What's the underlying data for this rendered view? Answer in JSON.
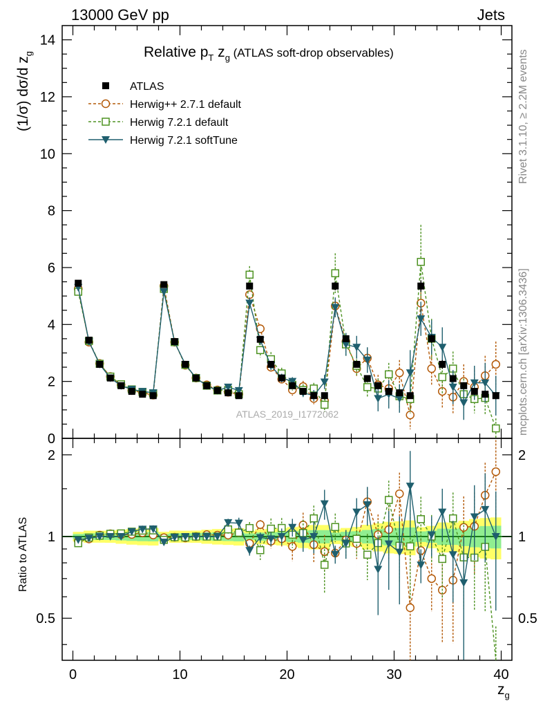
{
  "header": {
    "left": "13000 GeV pp",
    "right": "Jets"
  },
  "title": {
    "main": "Relative p",
    "sub_T": "T",
    "after": " z",
    "sub_g": "g",
    "small": " (ATLAS soft-drop observables)"
  },
  "ylabel_top": "(1/σ) dσ/d z",
  "ylabel_top_sub": "g",
  "ylabel_bottom": "Ratio to ATLAS",
  "xlabel": "z",
  "xlabel_sub": "g",
  "watermark": "ATLAS_2019_I1772062",
  "side_text_1": "Rivet 3.1.10, ≥ 2.2M events",
  "side_text_2": "mcplots.cern.ch [arXiv:1306.3436]",
  "colors": {
    "atlas": "#000000",
    "herwigpp": "#b35806",
    "herwig721": "#4d9221",
    "softtune": "#1f5f6e",
    "band_inner": "#90ee90",
    "band_outer": "#ffff66"
  },
  "chart_data": {
    "type": "scatter",
    "title": "Relative pT zg (ATLAS soft-drop observables)",
    "xlabel": "zg",
    "ylabel": "(1/σ) dσ/d zg",
    "xlim": [
      -1,
      41
    ],
    "ylim": [
      0,
      14.5
    ],
    "ratio_ylim": [
      0.35,
      2.3
    ],
    "x_ticks": [
      0,
      10,
      20,
      30,
      40
    ],
    "y_ticks": [
      0,
      2,
      4,
      6,
      8,
      10,
      12,
      14
    ],
    "ratio_ticks": [
      0.5,
      1,
      2
    ],
    "legend": [
      "ATLAS",
      "Herwig++ 2.7.1 default",
      "Herwig 7.2.1 default",
      "Herwig 7.2.1 softTune"
    ],
    "x": [
      0.5,
      1.5,
      2.5,
      3.5,
      4.5,
      5.5,
      6.5,
      7.5,
      8.5,
      9.5,
      10.5,
      11.5,
      12.5,
      13.5,
      14.5,
      15.5,
      16.5,
      17.5,
      18.5,
      19.5,
      20.5,
      21.5,
      22.5,
      23.5,
      24.5,
      25.5,
      26.5,
      27.5,
      28.5,
      29.5,
      30.5,
      31.5,
      32.5,
      33.5,
      34.5,
      35.5,
      36.5,
      37.5,
      38.5,
      39.5
    ],
    "series": [
      {
        "name": "ATLAS",
        "values": [
          5.45,
          3.45,
          2.6,
          2.12,
          1.85,
          1.65,
          1.55,
          1.5,
          5.4,
          3.4,
          2.6,
          2.12,
          1.85,
          1.68,
          1.6,
          1.5,
          5.35,
          3.48,
          2.6,
          2.12,
          1.85,
          1.65,
          1.5,
          1.5,
          5.35,
          3.5,
          2.6,
          2.1,
          1.85,
          1.65,
          1.6,
          1.5,
          5.35,
          3.5,
          2.6,
          2.1,
          1.85,
          1.65,
          1.55,
          1.5
        ],
        "errors": [
          0.1,
          0.08,
          0.06,
          0.05,
          0.05,
          0.05,
          0.05,
          0.05,
          0.1,
          0.08,
          0.06,
          0.05,
          0.05,
          0.05,
          0.05,
          0.05,
          0.12,
          0.1,
          0.08,
          0.07,
          0.07,
          0.07,
          0.07,
          0.07,
          0.15,
          0.12,
          0.1,
          0.1,
          0.1,
          0.1,
          0.1,
          0.1,
          0.2,
          0.15,
          0.15,
          0.12,
          0.12,
          0.12,
          0.12,
          0.12
        ]
      },
      {
        "name": "Herwig++ 2.7.1 default",
        "values": [
          5.25,
          3.38,
          2.63,
          2.17,
          1.88,
          1.68,
          1.6,
          1.52,
          5.35,
          3.38,
          2.57,
          2.12,
          1.88,
          1.7,
          1.62,
          1.55,
          5.05,
          3.85,
          2.5,
          2.08,
          1.7,
          1.82,
          1.4,
          1.32,
          4.65,
          3.4,
          2.45,
          2.82,
          1.88,
          1.75,
          2.3,
          0.82,
          4.75,
          2.45,
          1.65,
          1.45,
          2.0,
          1.8,
          2.2,
          2.6
        ],
        "errors": [
          0.05,
          0.05,
          0.05,
          0.05,
          0.05,
          0.05,
          0.05,
          0.05,
          0.1,
          0.06,
          0.05,
          0.05,
          0.05,
          0.05,
          0.06,
          0.06,
          0.15,
          0.15,
          0.15,
          0.15,
          0.2,
          0.2,
          0.2,
          0.2,
          0.25,
          0.3,
          0.3,
          0.35,
          0.35,
          0.4,
          0.45,
          0.5,
          0.5,
          0.6,
          0.6,
          0.6,
          0.6,
          0.6,
          0.7,
          0.8
        ]
      },
      {
        "name": "Herwig 7.2.1 default",
        "values": [
          5.15,
          3.42,
          2.62,
          2.17,
          1.9,
          1.72,
          1.63,
          1.58,
          5.25,
          3.38,
          2.58,
          2.12,
          1.85,
          1.68,
          1.7,
          1.55,
          5.75,
          3.1,
          2.78,
          2.28,
          1.88,
          1.7,
          1.75,
          1.18,
          5.8,
          3.3,
          2.55,
          1.8,
          1.75,
          2.25,
          1.48,
          1.38,
          6.2,
          3.5,
          2.15,
          2.45,
          1.55,
          1.38,
          1.42,
          0.35
        ],
        "errors": [
          0.05,
          0.05,
          0.05,
          0.05,
          0.05,
          0.05,
          0.05,
          0.05,
          0.1,
          0.06,
          0.05,
          0.05,
          0.05,
          0.05,
          0.06,
          0.06,
          0.3,
          0.25,
          0.25,
          0.2,
          0.2,
          0.2,
          0.2,
          0.25,
          0.7,
          0.4,
          0.35,
          0.35,
          0.35,
          0.4,
          0.4,
          0.5,
          1.3,
          0.7,
          0.6,
          0.6,
          0.55,
          0.5,
          0.6,
          0.35
        ]
      },
      {
        "name": "Herwig 7.2.1 softTune",
        "values": [
          5.3,
          3.4,
          2.6,
          2.12,
          1.85,
          1.72,
          1.65,
          1.6,
          5.15,
          3.38,
          2.6,
          2.12,
          1.85,
          1.68,
          1.8,
          1.68,
          4.75,
          3.45,
          2.55,
          2.12,
          2.0,
          1.6,
          1.5,
          1.98,
          4.6,
          3.3,
          3.2,
          2.75,
          1.4,
          1.55,
          1.4,
          2.3,
          4.2,
          3.55,
          3.2,
          1.8,
          1.25,
          1.95,
          1.95,
          1.5
        ],
        "errors": [
          0.05,
          0.05,
          0.05,
          0.05,
          0.05,
          0.05,
          0.05,
          0.05,
          0.1,
          0.06,
          0.05,
          0.05,
          0.05,
          0.05,
          0.06,
          0.08,
          0.2,
          0.15,
          0.15,
          0.15,
          0.15,
          0.15,
          0.2,
          0.25,
          0.35,
          0.4,
          0.4,
          0.45,
          0.45,
          0.5,
          0.5,
          0.8,
          0.6,
          0.6,
          0.7,
          0.6,
          0.6,
          0.6,
          0.7,
          0.7
        ]
      }
    ]
  }
}
